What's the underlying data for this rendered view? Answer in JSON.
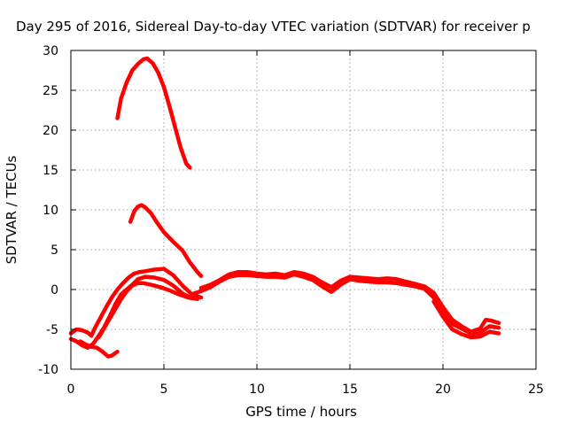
{
  "chart_data": {
    "type": "line",
    "title": "Day 295 of 2016, Sidereal Day-to-day VTEC variation (SDTVAR) for receiver p",
    "xlabel": "GPS time / hours",
    "ylabel": "SDTVAR / TECUs",
    "xlim": [
      0,
      25
    ],
    "ylim": [
      -10,
      30
    ],
    "xticks": [
      "0",
      "5",
      "10",
      "15",
      "20",
      "25"
    ],
    "yticks": [
      "-10",
      "-5",
      "0",
      "5",
      "10",
      "15",
      "20",
      "25",
      "30"
    ],
    "grid": true,
    "legend": "none",
    "series_color": "#ff0000",
    "series": [
      {
        "x": [
          2.5,
          2.7,
          3.0,
          3.3,
          3.6,
          3.9,
          4.1,
          4.4,
          4.7,
          5.0,
          5.3,
          5.6,
          5.9,
          6.2,
          6.4
        ],
        "y": [
          21.5,
          24.0,
          26.0,
          27.5,
          28.3,
          28.9,
          29.0,
          28.4,
          27.2,
          25.4,
          23.0,
          20.4,
          17.8,
          15.8,
          15.3
        ]
      },
      {
        "x": [
          3.2,
          3.4,
          3.6,
          3.8,
          4.0,
          4.3,
          4.6,
          5.0,
          5.5,
          6.0,
          6.4,
          6.8,
          7.0
        ],
        "y": [
          8.5,
          9.8,
          10.4,
          10.6,
          10.3,
          9.6,
          8.5,
          7.2,
          6.0,
          4.9,
          3.4,
          2.2,
          1.7
        ]
      },
      {
        "x": [
          0.0,
          0.3,
          0.6,
          0.9,
          1.1,
          1.3,
          1.6,
          1.9,
          2.2,
          2.5,
          2.8,
          3.1,
          3.4,
          3.7,
          4.0,
          4.5,
          5.0,
          5.5,
          6.0,
          6.5,
          7.0
        ],
        "y": [
          -5.5,
          -5.0,
          -5.1,
          -5.4,
          -5.8,
          -4.8,
          -3.5,
          -2.2,
          -1.0,
          0.0,
          0.8,
          1.5,
          2.0,
          2.2,
          2.3,
          2.5,
          2.6,
          1.8,
          0.5,
          -0.6,
          -1.0
        ]
      },
      {
        "x": [
          0.0,
          0.3,
          0.6,
          0.9,
          1.2,
          1.5,
          1.8,
          2.1,
          2.4,
          2.7,
          3.0,
          3.3,
          3.6,
          4.0,
          4.5,
          5.0,
          5.5,
          6.0,
          6.5
        ],
        "y": [
          -6.2,
          -6.5,
          -7.0,
          -7.3,
          -6.8,
          -5.8,
          -4.7,
          -3.3,
          -1.8,
          -0.6,
          0.0,
          0.6,
          1.3,
          1.6,
          1.5,
          1.2,
          0.5,
          -0.5,
          -1.1
        ]
      },
      {
        "x": [
          0.5,
          0.8,
          1.1,
          1.4,
          1.7,
          2.0,
          2.2,
          2.5
        ],
        "y": [
          -6.5,
          -6.9,
          -7.2,
          -7.3,
          -7.8,
          -8.4,
          -8.3,
          -7.8
        ]
      },
      {
        "x": [
          1.5,
          1.8,
          2.1,
          2.4,
          2.7,
          3.0,
          3.3,
          3.6,
          3.9,
          4.3,
          4.8,
          5.3,
          5.8,
          6.3,
          6.8
        ],
        "y": [
          -6.0,
          -4.8,
          -3.6,
          -2.4,
          -1.2,
          -0.2,
          0.5,
          0.8,
          0.8,
          0.6,
          0.3,
          -0.1,
          -0.6,
          -1.0,
          -1.2
        ]
      },
      {
        "x": [
          6.5,
          7.0,
          7.5,
          8.0,
          8.5,
          9.0,
          9.5,
          10.0,
          10.5,
          11.0,
          11.5,
          12.0,
          12.5,
          13.0,
          13.5,
          14.0,
          14.5,
          15.0,
          15.5,
          16.0,
          16.5,
          17.0,
          17.5,
          18.0,
          18.5,
          19.0,
          19.5,
          20.0,
          20.5,
          21.0,
          21.5,
          22.0,
          22.5,
          23.0
        ],
        "y": [
          -0.6,
          -0.2,
          0.3,
          1.0,
          1.6,
          1.8,
          1.8,
          1.7,
          1.6,
          1.6,
          1.5,
          1.9,
          1.6,
          1.2,
          0.4,
          -0.3,
          0.6,
          1.3,
          1.1,
          1.0,
          0.9,
          0.9,
          0.8,
          0.6,
          0.4,
          0.1,
          -1.0,
          -2.8,
          -4.3,
          -4.9,
          -5.5,
          -5.4,
          -4.6,
          -4.8
        ]
      },
      {
        "x": [
          7.0,
          7.5,
          8.0,
          8.5,
          9.0,
          9.5,
          10.0,
          10.5,
          11.0,
          11.5,
          12.0,
          12.5,
          13.0,
          13.5,
          14.0,
          14.5,
          15.0,
          15.5,
          16.0,
          16.5,
          17.0,
          17.5,
          18.0,
          18.5,
          19.0,
          19.5,
          20.0,
          20.5,
          21.0,
          21.5,
          22.0,
          22.3,
          22.6,
          23.0
        ],
        "y": [
          0.2,
          0.6,
          1.2,
          1.9,
          2.2,
          2.2,
          2.0,
          1.9,
          2.0,
          1.8,
          2.2,
          2.0,
          1.6,
          0.9,
          0.3,
          1.1,
          1.6,
          1.5,
          1.4,
          1.3,
          1.4,
          1.3,
          1.0,
          0.7,
          0.4,
          -0.4,
          -2.2,
          -3.8,
          -4.6,
          -5.3,
          -4.9,
          -3.8,
          -3.9,
          -4.2
        ]
      },
      {
        "x": [
          19.5,
          20.0,
          20.5,
          21.0,
          21.5,
          22.0,
          22.5,
          23.0
        ],
        "y": [
          -1.5,
          -3.4,
          -5.0,
          -5.6,
          -6.0,
          -5.9,
          -5.3,
          -5.5
        ]
      }
    ]
  }
}
